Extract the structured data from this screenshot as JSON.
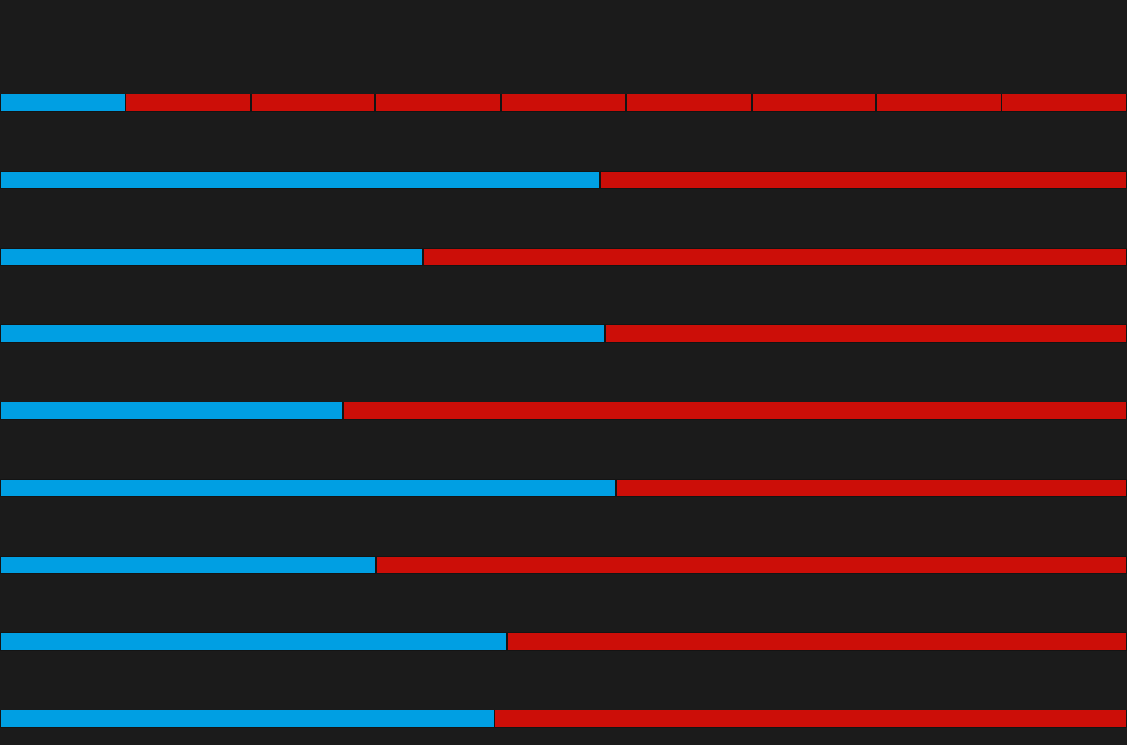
{
  "colors": {
    "background": "#1b1b1b",
    "filled": "#009fe3",
    "remaining": "#cc0e08",
    "divider": "#141414"
  },
  "progress_bars": [
    {
      "progress": 0.111,
      "segments": 9
    },
    {
      "progress": 0.532,
      "segments": 2
    },
    {
      "progress": 0.375,
      "segments": 2
    },
    {
      "progress": 0.537,
      "segments": 2
    },
    {
      "progress": 0.304,
      "segments": 2
    },
    {
      "progress": 0.547,
      "segments": 2
    },
    {
      "progress": 0.334,
      "segments": 2
    },
    {
      "progress": 0.45,
      "segments": 2
    },
    {
      "progress": 0.439,
      "segments": 2
    }
  ]
}
